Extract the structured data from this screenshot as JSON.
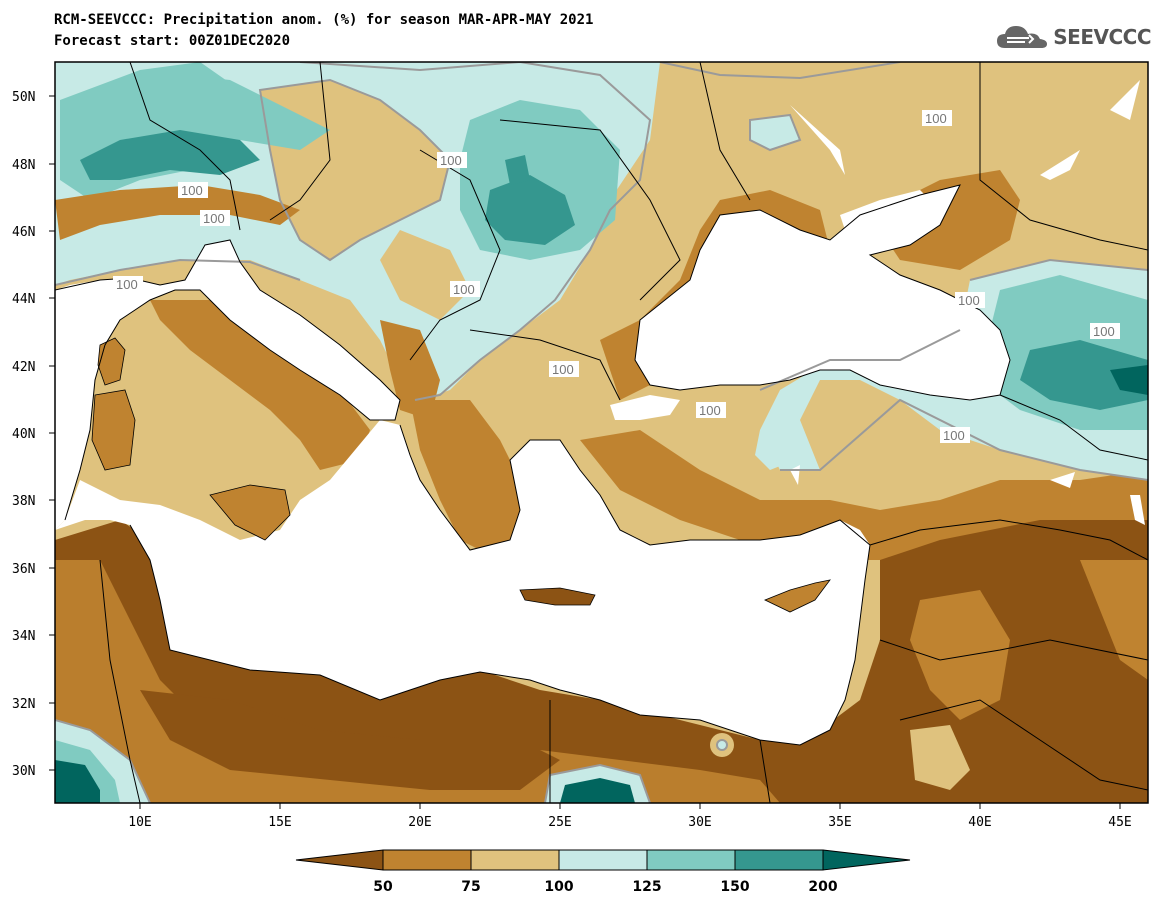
{
  "header": {
    "title_line1": "RCM-SEEVCCC: Precipitation anom. (%) for season MAR-APR-MAY 2021",
    "title_line2": "Forecast start: 00Z01DEC2020",
    "logo_text": "SEEVCCC"
  },
  "axes": {
    "lat_labels": [
      "50N",
      "48N",
      "46N",
      "44N",
      "42N",
      "40N",
      "38N",
      "36N",
      "34N",
      "32N",
      "30N"
    ],
    "lon_labels": [
      "10E",
      "15E",
      "20E",
      "25E",
      "30E",
      "35E",
      "40E",
      "45E"
    ]
  },
  "map": {
    "contour_level": "100",
    "contour_labels": [
      "100",
      "100",
      "100",
      "100",
      "100",
      "100",
      "100",
      "100",
      "100",
      "100",
      "100",
      "100"
    ]
  },
  "colorbar": {
    "ticks": [
      "50",
      "75",
      "100",
      "125",
      "150",
      "200"
    ],
    "colors": [
      "#8c5314",
      "#bf8330",
      "#dfc27e",
      "#c7eae6",
      "#80cbc1",
      "#35978f",
      "#01655e"
    ]
  },
  "colors": {
    "sea": "#ffffff",
    "contour_line": "#9a9a9a",
    "below_50": "#8c5314",
    "50_75": "#bf8330",
    "75_100": "#dfc27e",
    "100_125": "#c7eae6",
    "125_150": "#80cbc1",
    "150_200": "#35978f",
    "above_200": "#01655e"
  }
}
